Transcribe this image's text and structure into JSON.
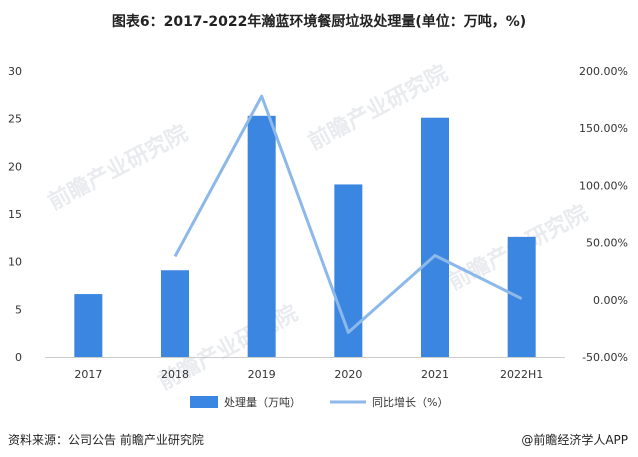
{
  "title": "图表6：2017-2022年瀚蓝环境餐厨垃圾处理量(单位：万吨，%)",
  "footer": {
    "source": "资料来源：公司公告 前瞻产业研究院",
    "credit": "@前瞻经济学人APP"
  },
  "watermark": "前瞻产业研究院",
  "colors": {
    "bar": "#3b86e0",
    "line": "#8db8ea",
    "axis": "#cccccc",
    "text": "#333333"
  },
  "chart_data": {
    "type": "bar",
    "categories": [
      "2017",
      "2018",
      "2019",
      "2020",
      "2021",
      "2022H1"
    ],
    "series": [
      {
        "name": "处理量（万吨）",
        "type": "bar",
        "axis": "left",
        "values": [
          6.6,
          9.1,
          25.3,
          18.1,
          25.1,
          12.6
        ]
      },
      {
        "name": "同比增长（%）",
        "type": "line",
        "axis": "right",
        "values": [
          null,
          37.9,
          178.0,
          -28.5,
          38.7,
          1.0
        ]
      }
    ],
    "y_left": {
      "ticks": [
        "0",
        "5",
        "10",
        "15",
        "20",
        "25",
        "30"
      ],
      "ylim": [
        0,
        30
      ]
    },
    "y_right": {
      "ticks": [
        "-50.00%",
        "0.00%",
        "50.00%",
        "100.00%",
        "150.00%",
        "200.00%"
      ],
      "ylim": [
        -50,
        200
      ]
    },
    "legend_position": "bottom"
  }
}
